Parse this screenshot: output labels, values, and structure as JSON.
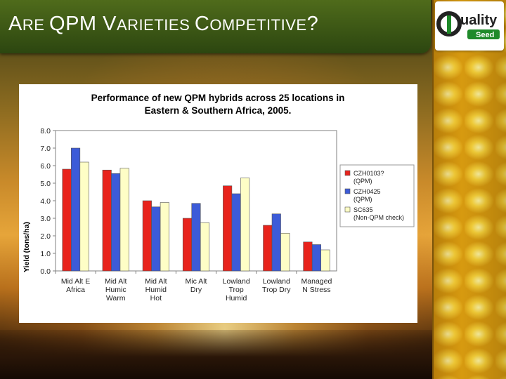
{
  "slide": {
    "title_parts": [
      "A",
      "RE ",
      "QPM ",
      "V",
      "ARIETIES ",
      "C",
      "OMPETITIVE",
      "?"
    ]
  },
  "logo": {
    "text_mark": "Q",
    "text_main": "uality",
    "text_sub": "Seed"
  },
  "colors": {
    "title_bar": "#3a5614",
    "series_1": "#e8231c",
    "series_2": "#3c5bd8",
    "series_3": "#fefec6"
  },
  "chart_data": {
    "type": "bar",
    "title": [
      "Performance of new QPM hybrids across 25 locations in",
      "Eastern & Southern Africa, 2005."
    ],
    "ylabel": "Yield (tons/ha)",
    "xlabel": "",
    "ylim": [
      0,
      8
    ],
    "yticks": [
      "0.0",
      "1.0",
      "2.0",
      "3.0",
      "4.0",
      "5.0",
      "6.0",
      "7.0",
      "8.0"
    ],
    "categories": [
      [
        "Mid Alt E",
        "Africa"
      ],
      [
        "Mid Alt",
        "Humic",
        "Warm"
      ],
      [
        "Mid Alt",
        "Humid",
        "Hot"
      ],
      [
        "Mic Alt",
        "Dry"
      ],
      [
        "Lowland",
        "Trop",
        "Humid"
      ],
      [
        "Lowland",
        "Trop Dry"
      ],
      [
        "Managed",
        "N Stress"
      ]
    ],
    "series": [
      {
        "name": [
          "CZH0103?",
          "(QPM)"
        ],
        "color": "#e8231c",
        "values": [
          5.8,
          5.75,
          4.0,
          3.0,
          4.85,
          2.6,
          1.65
        ]
      },
      {
        "name": [
          "CZH0425",
          "(QPM)"
        ],
        "color": "#3c5bd8",
        "values": [
          7.0,
          5.55,
          3.65,
          3.85,
          4.4,
          3.25,
          1.5
        ]
      },
      {
        "name": [
          "SC635",
          "(Non-QPM check)"
        ],
        "color": "#fefec6",
        "values": [
          6.2,
          5.85,
          3.9,
          2.75,
          5.3,
          2.15,
          1.2
        ]
      }
    ],
    "grid": false,
    "legend_position": "right"
  }
}
